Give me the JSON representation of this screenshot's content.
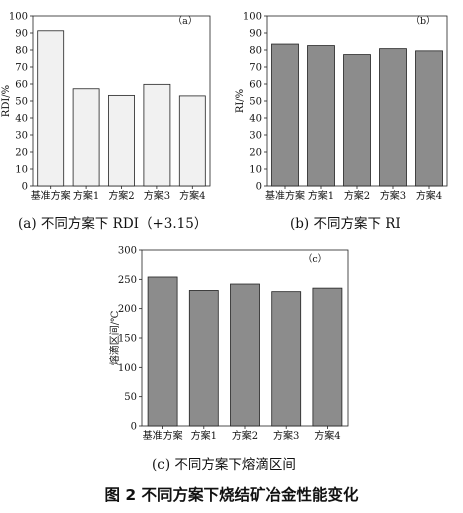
{
  "chart_data": [
    {
      "type": "bar",
      "panel_tag": "（a）",
      "caption": "(a)  不同方案下 RDI（+3.15）",
      "ylabel": "RDI/%",
      "categories": [
        "基准方案",
        "方案1",
        "方案2",
        "方案3",
        "方案4"
      ],
      "values": [
        91.3,
        57.2,
        53.3,
        59.8,
        53.0
      ],
      "ylim": [
        0,
        100
      ],
      "yticks": [
        0,
        10,
        20,
        30,
        40,
        50,
        60,
        70,
        80,
        90,
        100
      ],
      "bar_color": "#f1f1f1",
      "grid": false
    },
    {
      "type": "bar",
      "panel_tag": "（b）",
      "caption": "(b)  不同方案下 RI",
      "ylabel": "RI/%",
      "categories": [
        "基准方案",
        "方案1",
        "方案2",
        "方案3",
        "方案4"
      ],
      "values": [
        83.5,
        82.6,
        77.3,
        80.8,
        79.5
      ],
      "ylim": [
        0,
        100
      ],
      "yticks": [
        0,
        10,
        20,
        30,
        40,
        50,
        60,
        70,
        80,
        90,
        100
      ],
      "bar_color": "#8c8c8c",
      "grid": false
    },
    {
      "type": "bar",
      "panel_tag": "（c）",
      "caption": "(c)  不同方案下熔滴区间",
      "ylabel": "熔滴区间/℃",
      "categories": [
        "基准方案",
        "方案1",
        "方案2",
        "方案3",
        "方案4"
      ],
      "values": [
        254,
        231,
        242,
        229,
        235
      ],
      "ylim": [
        0,
        300
      ],
      "yticks": [
        0,
        50,
        100,
        150,
        200,
        250,
        300
      ],
      "bar_color": "#8c8c8c",
      "grid": false
    }
  ],
  "figure_title": "图 2  不同方案下烧结矿冶金性能变化"
}
